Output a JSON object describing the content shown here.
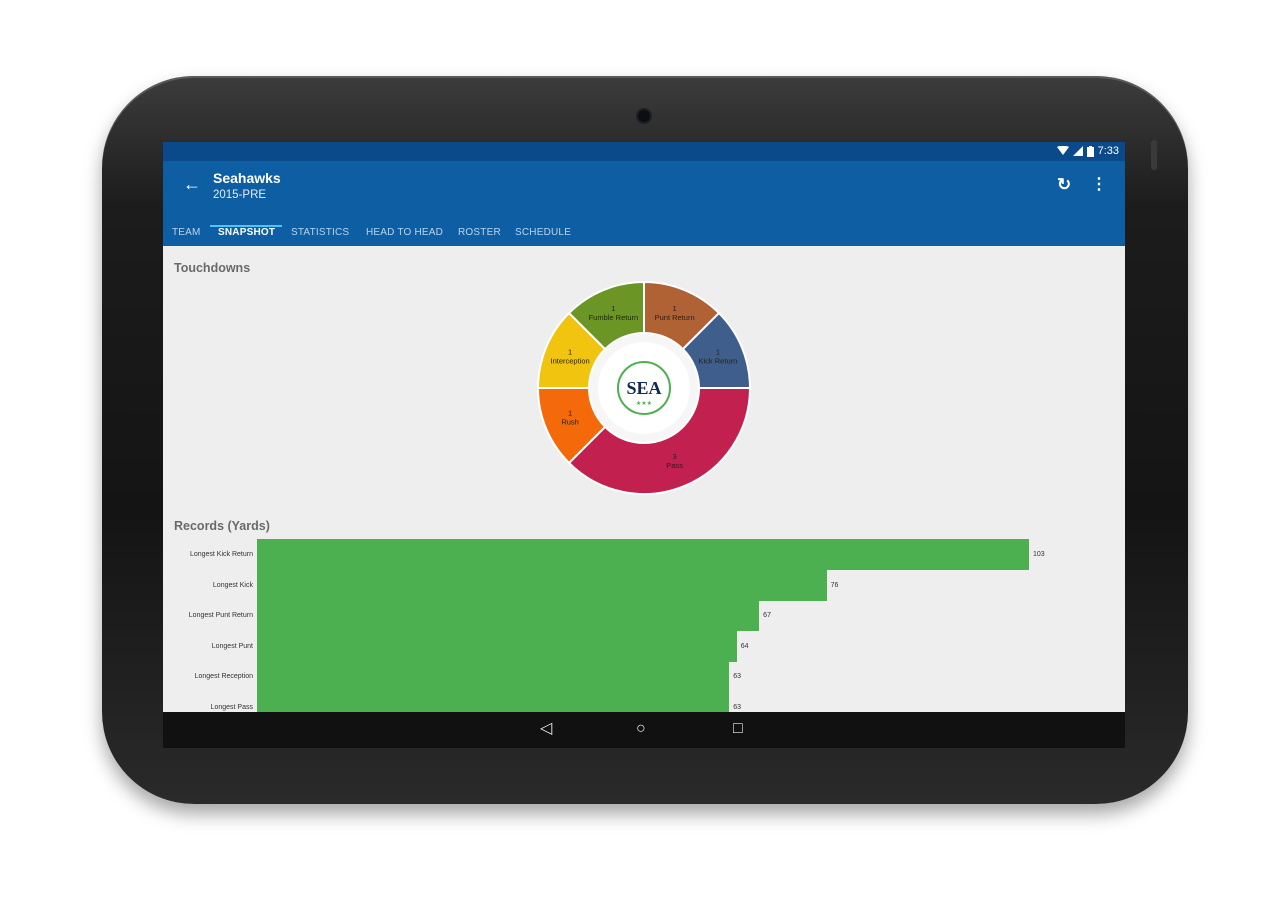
{
  "status": {
    "time": "7:33"
  },
  "header": {
    "title": "Seahawks",
    "subtitle": "2015-PRE",
    "back_icon": "arrow-back-icon",
    "refresh_icon": "refresh-icon",
    "more_icon": "more-vert-icon"
  },
  "tabs": [
    {
      "label": "TEAM"
    },
    {
      "label": "SNAPSHOT",
      "active": true
    },
    {
      "label": "STATISTICS"
    },
    {
      "label": "HEAD TO HEAD"
    },
    {
      "label": "ROSTER"
    },
    {
      "label": "SCHEDULE"
    }
  ],
  "touchdowns": {
    "title": "Touchdowns",
    "logo_text": "SEA",
    "logo_stars": "★★★"
  },
  "records": {
    "title": "Records (Yards)"
  },
  "chart_data": [
    {
      "type": "pie",
      "title": "Touchdowns",
      "categories": [
        "Punt Return",
        "Kick Return",
        "Pass",
        "Rush",
        "Interception",
        "Fumble Return"
      ],
      "values": [
        1,
        1,
        3,
        1,
        1,
        1
      ],
      "colors": [
        "#b06235",
        "#3f5e8c",
        "#c2214f",
        "#f46a0a",
        "#f1c40f",
        "#6b9626"
      ]
    },
    {
      "type": "bar",
      "title": "Records (Yards)",
      "categories": [
        "Longest Kick Return",
        "Longest Kick",
        "Longest Punt Return",
        "Longest Punt",
        "Longest Reception",
        "Longest Pass"
      ],
      "values": [
        103,
        76,
        67,
        64,
        63,
        63
      ],
      "color": "#4caf50"
    }
  ]
}
